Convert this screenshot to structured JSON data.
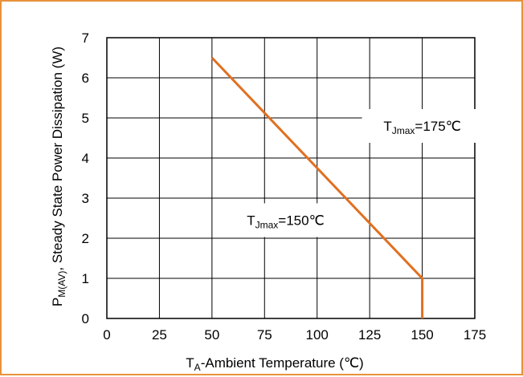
{
  "chart_data": {
    "type": "line",
    "title": "",
    "xlabel": {
      "main": "T",
      "sub": "A",
      "rest": "-Ambient Temperature (℃)"
    },
    "ylabel": {
      "main": "P",
      "sub": "M(AV)",
      "rest": ", Steady State Power Dissipation (W)"
    },
    "xlim": [
      0,
      175
    ],
    "ylim": [
      0,
      7
    ],
    "xticks": [
      0,
      25,
      50,
      75,
      100,
      125,
      150,
      175
    ],
    "yticks": [
      0,
      1,
      2,
      3,
      4,
      5,
      6,
      7
    ],
    "grid": true,
    "series": [
      {
        "name": "",
        "color": "#E07020",
        "x": [
          50,
          150,
          150
        ],
        "y": [
          6.5,
          1,
          0
        ]
      }
    ],
    "annotations": [
      {
        "main": "T",
        "sub": "Jmax",
        "rest": "=175℃",
        "x": 150,
        "y": 4.8
      },
      {
        "main": "T",
        "sub": "Jmax",
        "rest": "=150℃",
        "x": 85,
        "y": 2.45
      }
    ]
  },
  "colors": {
    "frame_border": "#E8923A",
    "series_line": "#E07020",
    "grid": "#000000"
  }
}
